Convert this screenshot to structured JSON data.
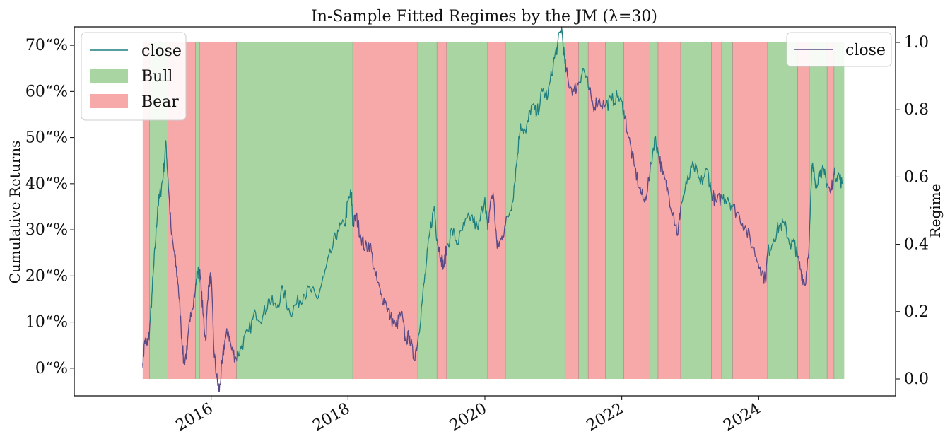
{
  "chart_data": {
    "type": "line",
    "title": "In-Sample Fitted Regimes by the JM (λ=30)",
    "ylabel_left": "Cumulative Returns",
    "ylabel_right": "Regime",
    "left_ticks": [
      "0“%",
      "10“%",
      "20“%",
      "30“%",
      "40“%",
      "50“%",
      "60“%",
      "70“%"
    ],
    "left_tick_values": [
      0,
      10,
      20,
      30,
      40,
      50,
      60,
      70
    ],
    "left_ylim": [
      -6,
      74
    ],
    "right_ticks": [
      "0.0",
      "0.2",
      "0.4",
      "0.6",
      "0.8",
      "1.0"
    ],
    "right_tick_values": [
      0.0,
      0.2,
      0.4,
      0.6,
      0.8,
      1.0
    ],
    "x_ticks": [
      "2016",
      "2018",
      "2020",
      "2022",
      "2024"
    ],
    "x_tick_values": [
      2016.0,
      2018.0,
      2020.0,
      2022.0,
      2024.0
    ],
    "xlim": [
      2014.0,
      2026.0
    ],
    "legend_left": [
      "close",
      "Bull",
      "Bear"
    ],
    "legend_right": [
      "close"
    ],
    "colors": {
      "line_bull": "#1f7f7f",
      "line_bear": "#5b4a85",
      "bull": "#a8d5a2",
      "bear": "#f7a8a8"
    },
    "regimes": [
      {
        "start": 2015.0,
        "end": 2015.1,
        "state": "Bear"
      },
      {
        "start": 2015.1,
        "end": 2015.37,
        "state": "Bull"
      },
      {
        "start": 2015.37,
        "end": 2015.77,
        "state": "Bear"
      },
      {
        "start": 2015.77,
        "end": 2015.83,
        "state": "Bull"
      },
      {
        "start": 2015.83,
        "end": 2016.37,
        "state": "Bear"
      },
      {
        "start": 2016.37,
        "end": 2018.07,
        "state": "Bull"
      },
      {
        "start": 2018.07,
        "end": 2019.02,
        "state": "Bear"
      },
      {
        "start": 2019.02,
        "end": 2019.3,
        "state": "Bull"
      },
      {
        "start": 2019.3,
        "end": 2019.44,
        "state": "Bear"
      },
      {
        "start": 2019.44,
        "end": 2020.04,
        "state": "Bull"
      },
      {
        "start": 2020.04,
        "end": 2020.3,
        "state": "Bear"
      },
      {
        "start": 2020.3,
        "end": 2021.17,
        "state": "Bull"
      },
      {
        "start": 2021.17,
        "end": 2021.37,
        "state": "Bear"
      },
      {
        "start": 2021.37,
        "end": 2021.51,
        "state": "Bull"
      },
      {
        "start": 2021.51,
        "end": 2021.76,
        "state": "Bear"
      },
      {
        "start": 2021.76,
        "end": 2022.03,
        "state": "Bull"
      },
      {
        "start": 2022.03,
        "end": 2022.41,
        "state": "Bear"
      },
      {
        "start": 2022.41,
        "end": 2022.53,
        "state": "Bull"
      },
      {
        "start": 2022.53,
        "end": 2022.86,
        "state": "Bear"
      },
      {
        "start": 2022.86,
        "end": 2023.31,
        "state": "Bull"
      },
      {
        "start": 2023.31,
        "end": 2023.46,
        "state": "Bear"
      },
      {
        "start": 2023.46,
        "end": 2023.62,
        "state": "Bull"
      },
      {
        "start": 2023.62,
        "end": 2024.13,
        "state": "Bear"
      },
      {
        "start": 2024.13,
        "end": 2024.57,
        "state": "Bull"
      },
      {
        "start": 2024.57,
        "end": 2024.74,
        "state": "Bear"
      },
      {
        "start": 2024.74,
        "end": 2025.0,
        "state": "Bull"
      },
      {
        "start": 2025.0,
        "end": 2025.1,
        "state": "Bear"
      },
      {
        "start": 2025.1,
        "end": 2025.25,
        "state": "Bull"
      }
    ],
    "series": [
      {
        "name": "close",
        "axis": "left",
        "points": [
          [
            2015.0,
            1
          ],
          [
            2015.03,
            6
          ],
          [
            2015.06,
            5
          ],
          [
            2015.1,
            8
          ],
          [
            2015.14,
            17
          ],
          [
            2015.18,
            26
          ],
          [
            2015.22,
            35
          ],
          [
            2015.26,
            38
          ],
          [
            2015.3,
            42
          ],
          [
            2015.34,
            49
          ],
          [
            2015.37,
            41
          ],
          [
            2015.42,
            29
          ],
          [
            2015.47,
            24
          ],
          [
            2015.52,
            18
          ],
          [
            2015.56,
            9
          ],
          [
            2015.6,
            1
          ],
          [
            2015.65,
            4
          ],
          [
            2015.7,
            12
          ],
          [
            2015.77,
            17
          ],
          [
            2015.8,
            21
          ],
          [
            2015.84,
            20
          ],
          [
            2015.88,
            12
          ],
          [
            2015.92,
            6
          ],
          [
            2015.96,
            18
          ],
          [
            2016.0,
            20
          ],
          [
            2016.04,
            4
          ],
          [
            2016.08,
            -2
          ],
          [
            2016.12,
            -5
          ],
          [
            2016.16,
            1
          ],
          [
            2016.2,
            6
          ],
          [
            2016.25,
            8
          ],
          [
            2016.3,
            4
          ],
          [
            2016.37,
            2
          ],
          [
            2016.45,
            5
          ],
          [
            2016.55,
            8
          ],
          [
            2016.65,
            12
          ],
          [
            2016.75,
            11
          ],
          [
            2016.85,
            15
          ],
          [
            2016.95,
            13
          ],
          [
            2017.05,
            17
          ],
          [
            2017.15,
            12
          ],
          [
            2017.25,
            14
          ],
          [
            2017.35,
            16
          ],
          [
            2017.45,
            17
          ],
          [
            2017.55,
            15
          ],
          [
            2017.65,
            20
          ],
          [
            2017.75,
            25
          ],
          [
            2017.85,
            30
          ],
          [
            2017.95,
            31
          ],
          [
            2018.0,
            36
          ],
          [
            2018.05,
            38
          ],
          [
            2018.07,
            31
          ],
          [
            2018.12,
            33
          ],
          [
            2018.18,
            29
          ],
          [
            2018.25,
            26
          ],
          [
            2018.32,
            27
          ],
          [
            2018.4,
            20
          ],
          [
            2018.48,
            16
          ],
          [
            2018.56,
            14
          ],
          [
            2018.62,
            11
          ],
          [
            2018.7,
            9
          ],
          [
            2018.78,
            12
          ],
          [
            2018.84,
            6
          ],
          [
            2018.9,
            7
          ],
          [
            2018.96,
            2
          ],
          [
            2019.02,
            6
          ],
          [
            2019.08,
            14
          ],
          [
            2019.14,
            22
          ],
          [
            2019.2,
            30
          ],
          [
            2019.26,
            35
          ],
          [
            2019.3,
            28
          ],
          [
            2019.36,
            24
          ],
          [
            2019.4,
            22
          ],
          [
            2019.44,
            26
          ],
          [
            2019.52,
            30
          ],
          [
            2019.6,
            27
          ],
          [
            2019.7,
            31
          ],
          [
            2019.8,
            33
          ],
          [
            2019.9,
            30
          ],
          [
            2020.0,
            37
          ],
          [
            2020.04,
            30
          ],
          [
            2020.08,
            36
          ],
          [
            2020.12,
            38
          ],
          [
            2020.18,
            26
          ],
          [
            2020.24,
            28
          ],
          [
            2020.3,
            31
          ],
          [
            2020.4,
            36
          ],
          [
            2020.46,
            44
          ],
          [
            2020.52,
            53
          ],
          [
            2020.6,
            51
          ],
          [
            2020.68,
            57
          ],
          [
            2020.76,
            55
          ],
          [
            2020.84,
            60
          ],
          [
            2020.92,
            59
          ],
          [
            2021.0,
            66
          ],
          [
            2021.06,
            70
          ],
          [
            2021.12,
            74
          ],
          [
            2021.17,
            66
          ],
          [
            2021.22,
            62
          ],
          [
            2021.3,
            60
          ],
          [
            2021.37,
            62
          ],
          [
            2021.44,
            65
          ],
          [
            2021.51,
            61
          ],
          [
            2021.58,
            57
          ],
          [
            2021.66,
            58
          ],
          [
            2021.76,
            57
          ],
          [
            2021.85,
            58
          ],
          [
            2021.95,
            59
          ],
          [
            2022.03,
            56
          ],
          [
            2022.1,
            50
          ],
          [
            2022.18,
            44
          ],
          [
            2022.26,
            39
          ],
          [
            2022.33,
            36
          ],
          [
            2022.41,
            42
          ],
          [
            2022.48,
            50
          ],
          [
            2022.53,
            47
          ],
          [
            2022.6,
            42
          ],
          [
            2022.68,
            38
          ],
          [
            2022.76,
            33
          ],
          [
            2022.82,
            29
          ],
          [
            2022.86,
            35
          ],
          [
            2022.95,
            40
          ],
          [
            2023.05,
            44
          ],
          [
            2023.15,
            40
          ],
          [
            2023.25,
            43
          ],
          [
            2023.31,
            38
          ],
          [
            2023.38,
            36
          ],
          [
            2023.46,
            37
          ],
          [
            2023.55,
            37
          ],
          [
            2023.62,
            35
          ],
          [
            2023.72,
            33
          ],
          [
            2023.82,
            30
          ],
          [
            2023.92,
            26
          ],
          [
            2024.02,
            22
          ],
          [
            2024.1,
            19
          ],
          [
            2024.13,
            25
          ],
          [
            2024.22,
            28
          ],
          [
            2024.3,
            31
          ],
          [
            2024.38,
            31
          ],
          [
            2024.46,
            27
          ],
          [
            2024.52,
            27
          ],
          [
            2024.57,
            24
          ],
          [
            2024.62,
            21
          ],
          [
            2024.68,
            18
          ],
          [
            2024.74,
            28
          ],
          [
            2024.78,
            44
          ],
          [
            2024.84,
            40
          ],
          [
            2024.9,
            43
          ],
          [
            2024.96,
            42
          ],
          [
            2025.0,
            40
          ],
          [
            2025.05,
            38
          ],
          [
            2025.1,
            42
          ],
          [
            2025.16,
            42
          ],
          [
            2025.22,
            40
          ]
        ]
      }
    ]
  }
}
